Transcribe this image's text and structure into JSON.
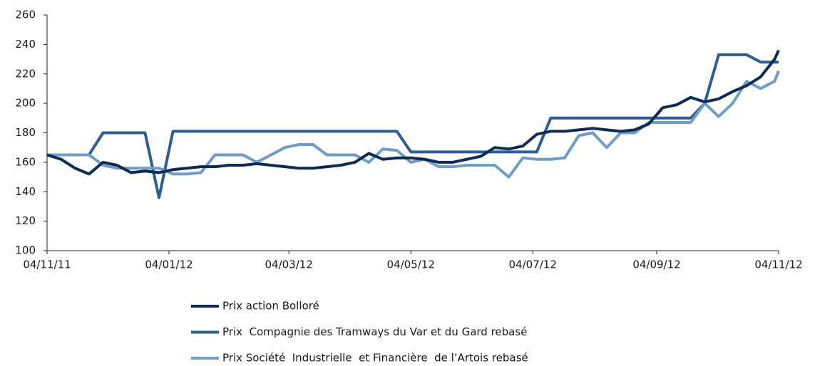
{
  "chart_data": {
    "type": "line",
    "x": [
      "2011-11-04",
      "2011-11-11",
      "2011-11-18",
      "2011-11-25",
      "2011-12-02",
      "2011-12-09",
      "2011-12-16",
      "2011-12-23",
      "2011-12-30",
      "2012-01-06",
      "2012-01-13",
      "2012-01-20",
      "2012-01-27",
      "2012-02-03",
      "2012-02-10",
      "2012-02-17",
      "2012-02-24",
      "2012-03-02",
      "2012-03-09",
      "2012-03-16",
      "2012-03-23",
      "2012-03-30",
      "2012-04-06",
      "2012-04-13",
      "2012-04-20",
      "2012-04-27",
      "2012-05-04",
      "2012-05-11",
      "2012-05-18",
      "2012-05-25",
      "2012-06-01",
      "2012-06-08",
      "2012-06-15",
      "2012-06-22",
      "2012-06-29",
      "2012-07-06",
      "2012-07-13",
      "2012-07-20",
      "2012-07-27",
      "2012-08-03",
      "2012-08-10",
      "2012-08-17",
      "2012-08-24",
      "2012-08-31",
      "2012-09-07",
      "2012-09-14",
      "2012-09-21",
      "2012-09-28",
      "2012-10-05",
      "2012-10-12",
      "2012-10-19",
      "2012-10-26",
      "2012-11-02",
      "2012-11-04"
    ],
    "series": [
      {
        "name": "Prix action Bolloré",
        "color": "#0d2b55",
        "values": [
          165,
          162,
          156,
          152,
          160,
          158,
          153,
          154,
          153,
          155,
          156,
          157,
          157,
          158,
          158,
          159,
          158,
          157,
          156,
          156,
          157,
          158,
          160,
          166,
          162,
          163,
          163,
          162,
          160,
          160,
          162,
          164,
          170,
          169,
          171,
          179,
          181,
          181,
          182,
          183,
          182,
          181,
          182,
          186,
          197,
          199,
          204,
          201,
          203,
          208,
          212,
          218,
          230,
          236
        ]
      },
      {
        "name": "Prix  Compagnie des Tramways du Var et du Gard rebasé",
        "color": "#2e5d91",
        "values": [
          165,
          165,
          165,
          165,
          180,
          180,
          180,
          180,
          136,
          181,
          181,
          181,
          181,
          181,
          181,
          181,
          181,
          181,
          181,
          181,
          181,
          181,
          181,
          181,
          181,
          181,
          167,
          167,
          167,
          167,
          167,
          167,
          167,
          167,
          167,
          167,
          190,
          190,
          190,
          190,
          190,
          190,
          190,
          190,
          190,
          190,
          190,
          200,
          233,
          233,
          233,
          228,
          228,
          228
        ]
      },
      {
        "name": "Prix Société  Industrielle  et Financière  de l’Artois rebasé",
        "color": "#6f9dc6",
        "values": [
          165,
          165,
          165,
          165,
          158,
          156,
          156,
          156,
          156,
          152,
          152,
          153,
          165,
          165,
          165,
          160,
          165,
          170,
          172,
          172,
          165,
          165,
          165,
          160,
          169,
          168,
          160,
          162,
          157,
          157,
          158,
          158,
          158,
          150,
          163,
          162,
          162,
          163,
          178,
          180,
          170,
          180,
          180,
          187,
          187,
          187,
          187,
          200,
          191,
          200,
          215,
          210,
          215,
          222
        ]
      }
    ],
    "xlim": [
      "2011-11-04",
      "2012-11-04"
    ],
    "xticks": [
      {
        "value": "2011-11-04",
        "label": "04/11/11"
      },
      {
        "value": "2012-01-04",
        "label": "04/01/12"
      },
      {
        "value": "2012-03-04",
        "label": "04/03/12"
      },
      {
        "value": "2012-05-04",
        "label": "04/05/12"
      },
      {
        "value": "2012-07-04",
        "label": "04/07/12"
      },
      {
        "value": "2012-09-04",
        "label": "04/09/12"
      },
      {
        "value": "2012-11-04",
        "label": "04/11/12"
      }
    ],
    "ylim": [
      100,
      260
    ],
    "yticks": [
      100,
      120,
      140,
      160,
      180,
      200,
      220,
      240,
      260
    ]
  }
}
